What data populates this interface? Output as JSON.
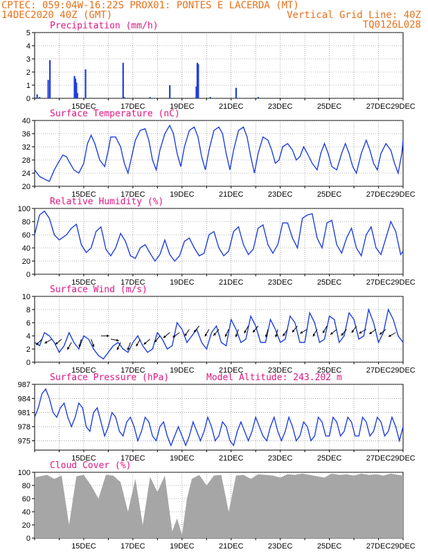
{
  "header": {
    "line1_left": "CPTEC:   059:04W-16:22S   PROX01: PONTES E LACERDA (MT)",
    "line2_left": "14DEC2020 40Z (GMT)",
    "line2_right": "Vertical Grid Line: 40Z",
    "line3_right": "TQ0126L028"
  },
  "colors": {
    "header": "#e8701a",
    "title": "#e0157f",
    "line": "#1f3fdc",
    "bar": "#1f3fdc",
    "cloud": "#a6a6a6"
  },
  "chart_data": [
    {
      "type": "bar",
      "title": "Precipitation (mm/h)",
      "ylim": [
        0,
        5
      ],
      "yticks": [
        0,
        1,
        2,
        3,
        4,
        5
      ],
      "xlabels": [
        "15DEC",
        "17DEC",
        "19DEC",
        "21DEC",
        "23DEC",
        "25DEC",
        "27DEC",
        "29DEC"
      ],
      "x_days": [
        0.1,
        0.2,
        0.55,
        0.62,
        1.62,
        1.66,
        1.7,
        1.74,
        2.07,
        3.6,
        3.64,
        4.7,
        5.5,
        6.58,
        6.62,
        6.66,
        7.15,
        8.2,
        9.1
      ],
      "values": [
        0.3,
        0.1,
        1.4,
        2.9,
        1.7,
        1.5,
        1.2,
        0.4,
        2.2,
        2.7,
        0.1,
        0.1,
        1.0,
        0.9,
        2.7,
        2.6,
        0.1,
        0.8,
        0.1
      ]
    },
    {
      "type": "line",
      "title": "Surface Temperature (nC)",
      "ylim": [
        20,
        40
      ],
      "yticks": [
        20,
        24,
        28,
        32,
        36,
        40
      ],
      "xlabels": [
        "15DEC",
        "17DEC",
        "19DEC",
        "21DEC",
        "23DEC",
        "25DEC",
        "27DEC",
        "29DEC"
      ],
      "x_days": [
        0,
        0.2,
        0.45,
        0.6,
        0.8,
        0.95,
        1.15,
        1.3,
        1.4,
        1.6,
        1.8,
        2.0,
        2.15,
        2.3,
        2.45,
        2.65,
        2.85,
        3.0,
        3.1,
        3.3,
        3.5,
        3.65,
        3.8,
        3.95,
        4.1,
        4.3,
        4.5,
        4.65,
        4.8,
        4.95,
        5.1,
        5.3,
        5.5,
        5.65,
        5.8,
        5.95,
        6.1,
        6.3,
        6.5,
        6.65,
        6.8,
        6.95,
        7.1,
        7.3,
        7.5,
        7.65,
        7.8,
        7.95,
        8.1,
        8.3,
        8.5,
        8.65,
        8.8,
        8.95,
        9.1,
        9.3,
        9.5,
        9.65,
        9.8,
        9.95,
        10.1,
        10.3,
        10.5,
        10.65,
        10.8,
        10.95,
        11.1,
        11.3,
        11.5,
        11.65,
        11.8,
        11.95,
        12.1,
        12.3,
        12.5,
        12.65,
        12.8,
        12.95,
        13.1,
        13.3,
        13.5,
        13.65,
        13.8,
        13.95,
        14.1,
        14.3,
        14.5,
        14.65,
        14.8,
        14.95,
        15.0
      ],
      "values": [
        25,
        23,
        22,
        21.5,
        25,
        27,
        29.5,
        29,
        27.5,
        25,
        24,
        27,
        33,
        35.5,
        33,
        28,
        26,
        31,
        35,
        35,
        32,
        27,
        24,
        29,
        34,
        37,
        37.5,
        34,
        28,
        25,
        31,
        36,
        38.5,
        36,
        30,
        26,
        32,
        37,
        38,
        35,
        29,
        25,
        31,
        37,
        38,
        36,
        30,
        25,
        31,
        37,
        38,
        35,
        29,
        24,
        30,
        35,
        34,
        31,
        27,
        28,
        32,
        33,
        31,
        28,
        29,
        32,
        30,
        27,
        25,
        30,
        33,
        30,
        26,
        25,
        30,
        33,
        30,
        26,
        24,
        30,
        34,
        31,
        27,
        25,
        30,
        33,
        31,
        27,
        24,
        30,
        34
      ],
      "ylabel": ""
    },
    {
      "type": "line",
      "title": "Relative Humidity (%)",
      "ylim": [
        0,
        100
      ],
      "yticks": [
        0,
        20,
        40,
        60,
        80,
        100
      ],
      "xlabels": [
        "15DEC",
        "17DEC",
        "19DEC",
        "21DEC",
        "23DEC",
        "25DEC",
        "27DEC",
        "29DEC"
      ],
      "x_days": [
        0,
        0.2,
        0.4,
        0.6,
        0.8,
        1.0,
        1.3,
        1.5,
        1.7,
        1.9,
        2.1,
        2.3,
        2.5,
        2.7,
        2.9,
        3.1,
        3.3,
        3.5,
        3.7,
        3.9,
        4.1,
        4.3,
        4.5,
        4.7,
        4.9,
        5.1,
        5.3,
        5.5,
        5.7,
        5.9,
        6.1,
        6.3,
        6.5,
        6.7,
        6.9,
        7.1,
        7.3,
        7.5,
        7.7,
        7.9,
        8.1,
        8.3,
        8.5,
        8.7,
        8.9,
        9.1,
        9.3,
        9.5,
        9.7,
        9.9,
        10.1,
        10.3,
        10.5,
        10.7,
        10.9,
        11.1,
        11.3,
        11.5,
        11.7,
        11.9,
        12.1,
        12.3,
        12.5,
        12.7,
        12.9,
        13.1,
        13.3,
        13.5,
        13.7,
        13.9,
        14.1,
        14.3,
        14.5,
        14.7,
        14.9,
        15.0
      ],
      "values": [
        60,
        90,
        96,
        85,
        60,
        52,
        60,
        70,
        76,
        45,
        33,
        40,
        65,
        72,
        38,
        28,
        40,
        62,
        50,
        28,
        24,
        40,
        45,
        32,
        20,
        30,
        52,
        30,
        20,
        28,
        50,
        55,
        40,
        28,
        32,
        60,
        65,
        40,
        28,
        35,
        65,
        72,
        45,
        30,
        38,
        70,
        75,
        45,
        32,
        45,
        78,
        78,
        55,
        40,
        85,
        90,
        92,
        55,
        40,
        78,
        82,
        45,
        32,
        55,
        70,
        40,
        28,
        60,
        72,
        40,
        30,
        55,
        80,
        65,
        30,
        35
      ]
    },
    {
      "type": "line",
      "title": "Surface Wind (m/s)",
      "ylim": [
        0,
        10
      ],
      "yticks": [
        0,
        2,
        4,
        6,
        8,
        10
      ],
      "xlabels": [
        "15DEC",
        "17DEC",
        "19DEC",
        "21DEC",
        "23DEC",
        "25DEC",
        "27DEC",
        "29DEC"
      ],
      "x_days": [
        0,
        0.2,
        0.4,
        0.6,
        0.8,
        1.0,
        1.2,
        1.4,
        1.6,
        1.8,
        2.0,
        2.2,
        2.4,
        2.6,
        2.8,
        3.0,
        3.2,
        3.4,
        3.6,
        3.8,
        4.0,
        4.2,
        4.4,
        4.6,
        4.8,
        5.0,
        5.2,
        5.4,
        5.6,
        5.8,
        6.0,
        6.2,
        6.4,
        6.6,
        6.8,
        7.0,
        7.2,
        7.4,
        7.6,
        7.8,
        8.0,
        8.2,
        8.4,
        8.6,
        8.8,
        9.0,
        9.2,
        9.4,
        9.6,
        9.8,
        10.0,
        10.2,
        10.4,
        10.6,
        10.8,
        11.0,
        11.2,
        11.4,
        11.6,
        11.8,
        12.0,
        12.2,
        12.4,
        12.6,
        12.8,
        13.0,
        13.2,
        13.4,
        13.6,
        13.8,
        14.0,
        14.2,
        14.4,
        14.6,
        14.8,
        15.0
      ],
      "values": [
        3.0,
        2.5,
        4.5,
        4.0,
        3.0,
        1.5,
        2.5,
        4.5,
        3.0,
        2.0,
        4.0,
        3.5,
        2.0,
        1.0,
        0.5,
        1.5,
        2.5,
        3.0,
        2.0,
        1.5,
        3.0,
        4.0,
        2.5,
        1.5,
        2.0,
        4.5,
        3.5,
        2.0,
        2.5,
        6.0,
        5.0,
        3.0,
        4.0,
        5.0,
        3.0,
        2.0,
        4.5,
        5.5,
        3.0,
        2.5,
        6.5,
        5.0,
        3.0,
        3.5,
        7.0,
        5.5,
        3.0,
        3.0,
        6.5,
        5.0,
        3.0,
        3.5,
        7.0,
        6.0,
        3.0,
        3.0,
        7.5,
        6.0,
        3.0,
        3.5,
        7.0,
        6.5,
        3.0,
        4.0,
        7.5,
        6.5,
        3.5,
        4.0,
        8.0,
        6.0,
        3.0,
        4.5,
        8.0,
        6.5,
        4.0,
        3.0
      ],
      "arrows": [
        [
          0.3,
          315,
          3.5
        ],
        [
          0.7,
          300,
          3.5
        ],
        [
          1.1,
          310,
          3.5
        ],
        [
          1.5,
          330,
          3.0
        ],
        [
          1.9,
          345,
          3.5
        ],
        [
          2.3,
          20,
          3.5
        ],
        [
          2.7,
          90,
          4.0
        ],
        [
          3.1,
          80,
          3.5
        ],
        [
          3.5,
          335,
          3.0
        ],
        [
          3.9,
          340,
          3.0
        ],
        [
          4.3,
          330,
          3.5
        ],
        [
          4.7,
          310,
          3.5
        ],
        [
          5.1,
          320,
          4.0
        ],
        [
          5.5,
          310,
          4.5
        ],
        [
          5.9,
          305,
          4.5
        ],
        [
          6.3,
          325,
          5.0
        ],
        [
          6.7,
          320,
          5.5
        ],
        [
          7.1,
          330,
          5.0
        ],
        [
          7.5,
          320,
          5.0
        ],
        [
          7.9,
          335,
          5.0
        ],
        [
          8.3,
          340,
          5.0
        ],
        [
          8.7,
          330,
          5.5
        ],
        [
          9.1,
          320,
          5.5
        ],
        [
          9.5,
          345,
          5.0
        ],
        [
          9.9,
          345,
          5.0
        ],
        [
          10.3,
          325,
          5.0
        ],
        [
          10.7,
          320,
          5.5
        ],
        [
          11.1,
          300,
          5.0
        ],
        [
          11.5,
          330,
          5.0
        ],
        [
          11.9,
          330,
          5.5
        ],
        [
          12.3,
          310,
          5.0
        ],
        [
          12.7,
          320,
          5.0
        ],
        [
          13.1,
          325,
          5.5
        ],
        [
          13.5,
          300,
          5.0
        ],
        [
          13.9,
          305,
          5.0
        ],
        [
          14.3,
          310,
          5.0
        ],
        [
          14.7,
          300,
          4.5
        ]
      ]
    },
    {
      "type": "line",
      "title": "Surface Pressure (hPa)",
      "subtitle": "Model Altitude: 243.202 m",
      "ylim": [
        973,
        987
      ],
      "yticks": [
        975,
        978,
        981,
        984,
        987
      ],
      "xlabels": [
        "15DEC",
        "17DEC",
        "19DEC",
        "21DEC",
        "23DEC",
        "25DEC",
        "27DEC",
        "29DEC"
      ],
      "x_days": [
        0,
        0.15,
        0.3,
        0.45,
        0.6,
        0.75,
        0.9,
        1.05,
        1.2,
        1.35,
        1.5,
        1.65,
        1.8,
        1.95,
        2.1,
        2.25,
        2.4,
        2.55,
        2.7,
        2.85,
        3.0,
        3.15,
        3.3,
        3.45,
        3.6,
        3.75,
        3.9,
        4.05,
        4.2,
        4.35,
        4.5,
        4.65,
        4.8,
        4.95,
        5.1,
        5.25,
        5.4,
        5.55,
        5.7,
        5.85,
        6.0,
        6.15,
        6.3,
        6.45,
        6.6,
        6.75,
        6.9,
        7.05,
        7.2,
        7.35,
        7.5,
        7.65,
        7.8,
        7.95,
        8.1,
        8.25,
        8.4,
        8.55,
        8.7,
        8.85,
        9.0,
        9.15,
        9.3,
        9.45,
        9.6,
        9.75,
        9.9,
        10.05,
        10.2,
        10.35,
        10.5,
        10.65,
        10.8,
        10.95,
        11.1,
        11.25,
        11.4,
        11.55,
        11.7,
        11.85,
        12.0,
        12.15,
        12.3,
        12.45,
        12.6,
        12.75,
        12.9,
        13.05,
        13.2,
        13.35,
        13.5,
        13.65,
        13.8,
        13.95,
        14.1,
        14.25,
        14.4,
        14.55,
        14.7,
        14.85,
        15.0
      ],
      "values": [
        980,
        982,
        985,
        986,
        984,
        981,
        980,
        982,
        983,
        980,
        978,
        980,
        983,
        982,
        978,
        977,
        981,
        982,
        979,
        976,
        978,
        981,
        980,
        977,
        976,
        979,
        980,
        978,
        975,
        977,
        980,
        979,
        976,
        975,
        978,
        979,
        976,
        974,
        976,
        978,
        976,
        974,
        976,
        979,
        977,
        975,
        977,
        980,
        978,
        975,
        976,
        979,
        978,
        975,
        974,
        977,
        979,
        977,
        975,
        977,
        980,
        978,
        976,
        975,
        978,
        980,
        977,
        975,
        977,
        980,
        978,
        975,
        976,
        979,
        978,
        975,
        976,
        980,
        979,
        976,
        976,
        980,
        979,
        976,
        977,
        980,
        979,
        976,
        976,
        980,
        979,
        976,
        977,
        980,
        979,
        976,
        977,
        980,
        978,
        975,
        978
      ]
    },
    {
      "type": "area",
      "title": "Cloud Cover (%)",
      "ylim": [
        0,
        100
      ],
      "yticks": [
        0,
        20,
        40,
        60,
        80,
        100
      ],
      "xlabels": [
        "15DEC",
        "17DEC",
        "19DEC",
        "21DEC",
        "23DEC",
        "25DEC",
        "27DEC",
        "29DEC"
      ],
      "x_days": [
        0,
        0.5,
        0.8,
        1.1,
        1.4,
        1.7,
        2.0,
        2.3,
        2.6,
        2.9,
        3.2,
        3.5,
        3.8,
        4.1,
        4.4,
        4.7,
        5.0,
        5.3,
        5.6,
        5.8,
        6.0,
        6.2,
        6.4,
        6.7,
        7.0,
        7.3,
        7.6,
        7.9,
        8.2,
        8.5,
        8.8,
        9.1,
        9.4,
        9.7,
        10.0,
        10.3,
        10.6,
        10.9,
        11.2,
        11.5,
        11.8,
        12.1,
        12.4,
        12.7,
        13.0,
        13.3,
        13.6,
        13.9,
        14.2,
        14.5,
        14.8,
        15.0
      ],
      "values": [
        92,
        96,
        90,
        95,
        20,
        94,
        96,
        80,
        60,
        96,
        95,
        85,
        40,
        90,
        20,
        93,
        70,
        95,
        10,
        30,
        5,
        60,
        90,
        96,
        80,
        95,
        96,
        40,
        95,
        96,
        90,
        97,
        96,
        95,
        92,
        97,
        96,
        98,
        96,
        94,
        92,
        98,
        96,
        97,
        95,
        98,
        96,
        97,
        95,
        98,
        96,
        95
      ]
    }
  ]
}
